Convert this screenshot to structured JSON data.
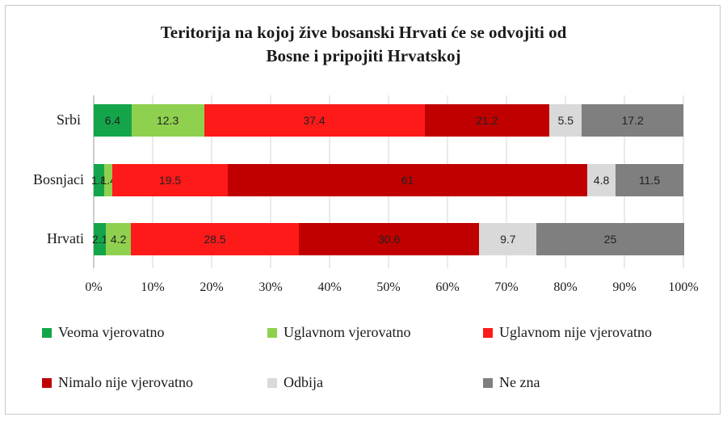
{
  "chart_data": {
    "type": "bar",
    "orientation": "horizontal",
    "stacked": true,
    "title": [
      "Teritorija na kojoj žive bosanski Hrvati će se odvojiti od",
      "Bosne i  pripojiti Hrvatskoj"
    ],
    "categories": [
      "Srbi",
      "Bosnjaci",
      "Hrvati"
    ],
    "series": [
      {
        "name": "Veoma vjerovatno",
        "color": "#14a54a",
        "values": [
          6.4,
          1.8,
          2.1
        ]
      },
      {
        "name": "Uglavnom vjerovatno",
        "color": "#8fd14f",
        "values": [
          12.3,
          1.4,
          4.2
        ]
      },
      {
        "name": "Uglavnom nije vjerovatno",
        "color": "#ff1a1a",
        "values": [
          37.4,
          19.5,
          28.5
        ]
      },
      {
        "name": "Nimalo nije vjerovatno",
        "color": "#c00000",
        "values": [
          21.2,
          61,
          30.6
        ]
      },
      {
        "name": "Odbija",
        "color": "#d9d9d9",
        "values": [
          5.5,
          4.8,
          9.7
        ]
      },
      {
        "name": "Ne zna",
        "color": "#7f7f7f",
        "values": [
          17.2,
          11.5,
          25
        ]
      }
    ],
    "x_ticks": [
      "0%",
      "10%",
      "20%",
      "30%",
      "40%",
      "50%",
      "60%",
      "70%",
      "80%",
      "90%",
      "100%"
    ],
    "xlim": [
      0,
      100
    ],
    "grid": true,
    "legend_position": "bottom"
  }
}
